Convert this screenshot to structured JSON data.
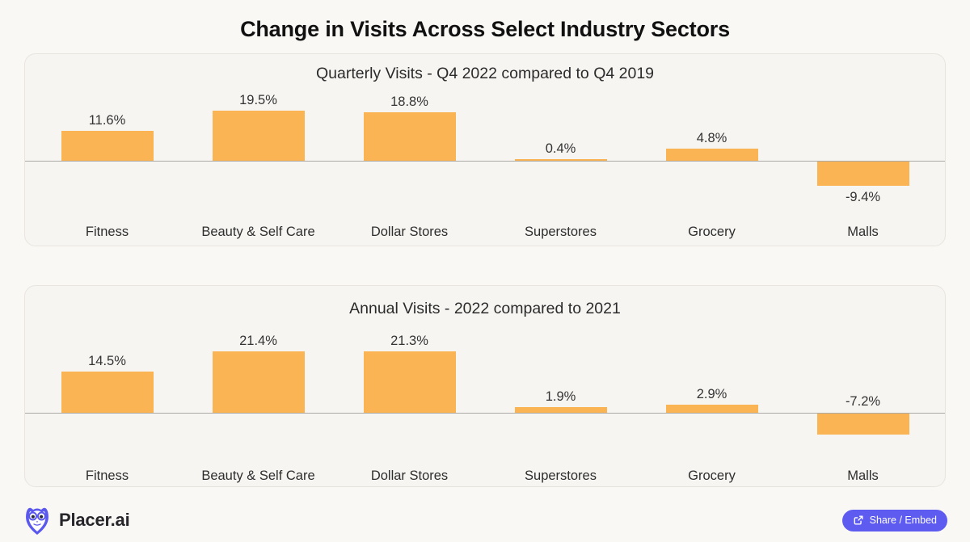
{
  "page": {
    "title": "Change in Visits Across Select Industry Sectors"
  },
  "chart_data": [
    {
      "type": "bar",
      "title": "Quarterly Visits - Q4 2022 compared to Q4 2019",
      "categories": [
        "Fitness",
        "Beauty & Self Care",
        "Dollar Stores",
        "Superstores",
        "Grocery",
        "Malls"
      ],
      "values": [
        11.6,
        19.5,
        18.8,
        0.4,
        4.8,
        -9.4
      ],
      "value_labels": [
        "11.6%",
        "19.5%",
        "18.8%",
        "0.4%",
        "4.8%",
        "-9.4%"
      ],
      "unit": "%",
      "bar_color": "#FBB454",
      "baseline": 0,
      "ylim": [
        -15,
        29
      ],
      "grid": false,
      "legend": false,
      "negative_label_position": "below-bar"
    },
    {
      "type": "bar",
      "title": "Annual Visits - 2022 compared to 2021",
      "categories": [
        "Fitness",
        "Beauty & Self Care",
        "Dollar Stores",
        "Superstores",
        "Grocery",
        "Malls"
      ],
      "values": [
        14.5,
        21.4,
        21.3,
        1.9,
        2.9,
        -7.2
      ],
      "value_labels": [
        "14.5%",
        "21.4%",
        "21.3%",
        "1.9%",
        "2.9%",
        "-7.2%"
      ],
      "unit": "%",
      "bar_color": "#FBB454",
      "baseline": 0,
      "ylim": [
        -11.5,
        30.5
      ],
      "grid": false,
      "legend": false,
      "negative_label_position": "above-baseline"
    }
  ],
  "footer": {
    "brand": "Placer.ai",
    "share_button_label": "Share / Embed",
    "accent_color": "#5E5BF0"
  }
}
